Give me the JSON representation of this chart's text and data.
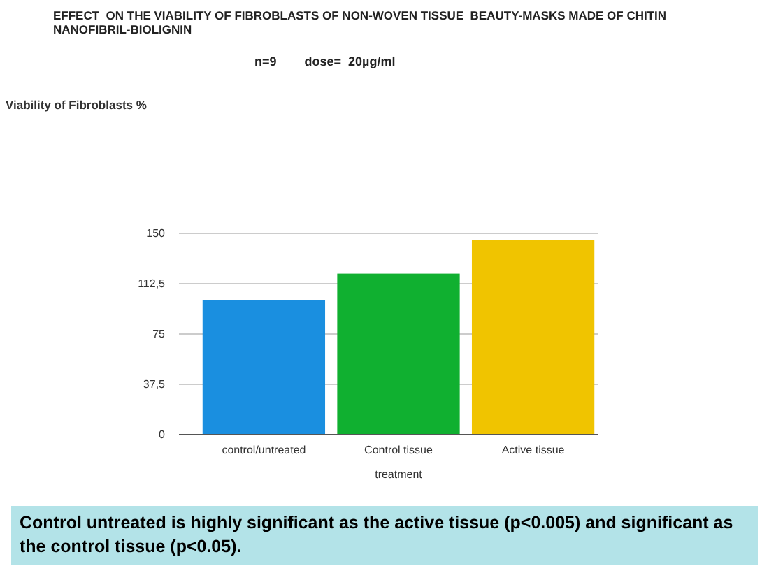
{
  "chart_data": {
    "type": "bar",
    "title": "EFFECT  ON THE VIABILITY OF FIBROBLASTS OF NON-WOVEN TISSUE  BEAUTY-MASKS MADE OF CHITIN NANOFIBRIL-BIOLIGNIN",
    "subtitle": "n=9        dose=  20µg/ml",
    "xlabel": "treatment",
    "categories": [
      "control/untreated",
      "Control tissue",
      "Active tissue"
    ],
    "values": [
      100,
      120,
      145
    ],
    "colors": [
      "#1a8fe0",
      "#10b030",
      "#f0c400"
    ],
    "ylim": [
      0,
      150
    ],
    "yticks": [
      0,
      {
        "value": 37.5,
        "label": "37,5"
      },
      75,
      {
        "value": 112.5,
        "label": "112,5"
      },
      150
    ],
    "grid": "y",
    "annotations": [
      "Viability of Fibroblasts %",
      "Control untreated is highly significant as the active tissue (p<0.005) and significant as the control tissue (p<0.05)."
    ]
  }
}
